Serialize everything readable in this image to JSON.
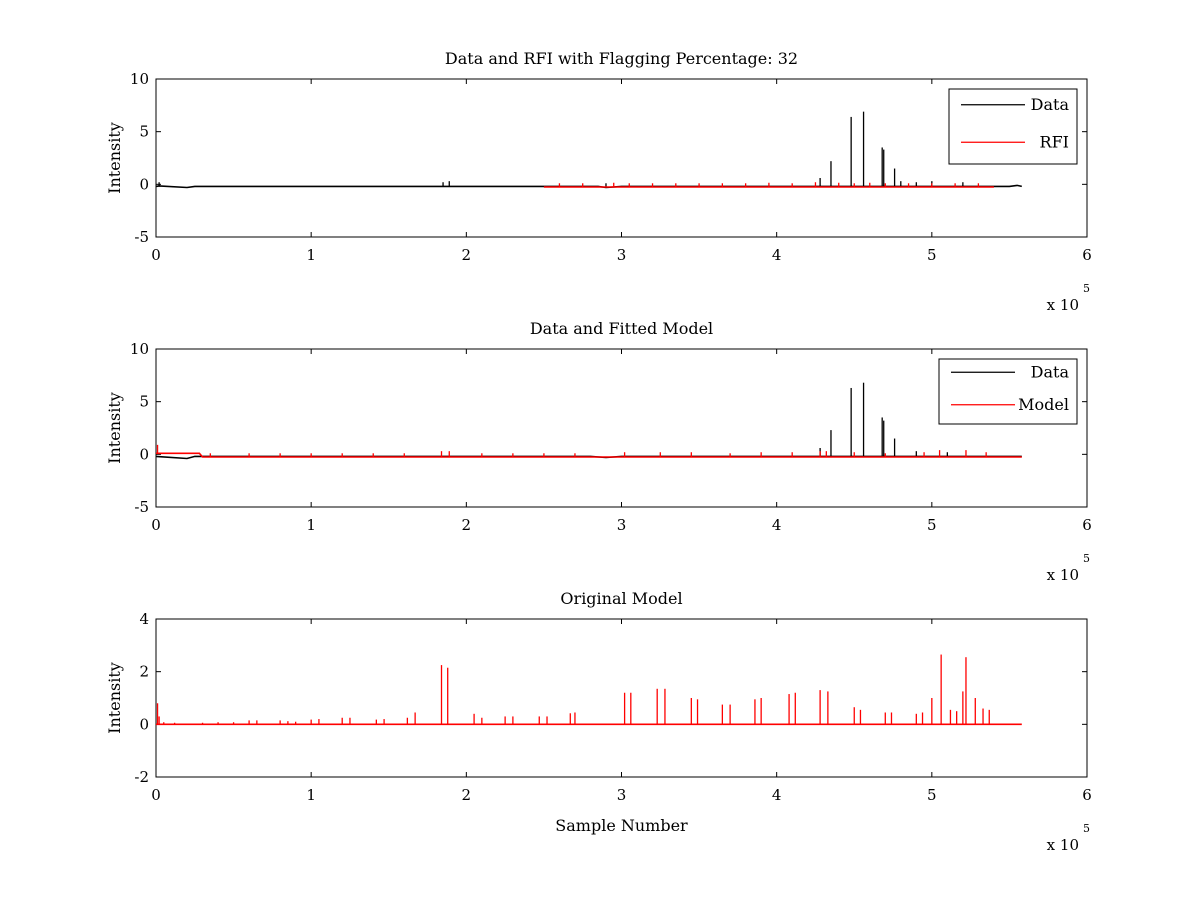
{
  "figure": {
    "background": "#ffffff",
    "colors": {
      "data": "#000000",
      "rfi": "#ff0000",
      "model": "#ff0000"
    }
  },
  "chart_data": [
    {
      "type": "line",
      "title": "Data and RFI with Flagging Percentage: 32",
      "xlabel": "",
      "ylabel": "Intensity",
      "xlim": [
        0,
        6
      ],
      "ylim": [
        -5,
        10
      ],
      "xticks": [
        "0",
        "1",
        "2",
        "3",
        "4",
        "5",
        "6"
      ],
      "yticks": [
        "-5",
        "0",
        "5",
        "10"
      ],
      "x_multiplier": {
        "base": "x 10",
        "exponent": "5"
      },
      "grid": false,
      "legend": {
        "position": "top-right",
        "entries": [
          "Data",
          "RFI"
        ]
      },
      "series": [
        {
          "name": "Data",
          "color": "#000000",
          "baseline": [
            [
              0,
              -0.2
            ],
            [
              0.02,
              -0.15
            ],
            [
              0.2,
              -0.3
            ],
            [
              0.25,
              -0.2
            ],
            [
              2.5,
              -0.2
            ],
            [
              2.85,
              -0.2
            ],
            [
              2.9,
              -0.3
            ],
            [
              3.0,
              -0.2
            ],
            [
              5.5,
              -0.2
            ],
            [
              5.55,
              -0.1
            ],
            [
              5.58,
              -0.2
            ]
          ],
          "spikes": [
            [
              0.02,
              0.2
            ],
            [
              1.85,
              0.2
            ],
            [
              1.89,
              0.3
            ],
            [
              2.9,
              0.1
            ],
            [
              4.28,
              0.6
            ],
            [
              4.35,
              2.2
            ],
            [
              4.48,
              6.4
            ],
            [
              4.56,
              6.9
            ],
            [
              4.68,
              3.5
            ],
            [
              4.69,
              3.3
            ],
            [
              4.76,
              1.5
            ],
            [
              4.8,
              0.3
            ],
            [
              4.9,
              0.2
            ],
            [
              5.0,
              0.3
            ],
            [
              5.2,
              0.2
            ]
          ]
        },
        {
          "name": "RFI",
          "color": "#ff0000",
          "baseline": [
            [
              2.5,
              -0.25
            ],
            [
              5.4,
              -0.25
            ]
          ],
          "spikes": [
            [
              2.6,
              0.1
            ],
            [
              2.75,
              0.1
            ],
            [
              2.95,
              0.15
            ],
            [
              3.05,
              0.1
            ],
            [
              3.2,
              0.1
            ],
            [
              3.35,
              0.1
            ],
            [
              3.5,
              0.1
            ],
            [
              3.65,
              0.1
            ],
            [
              3.8,
              0.1
            ],
            [
              3.95,
              0.15
            ],
            [
              4.1,
              0.1
            ],
            [
              4.25,
              0.2
            ],
            [
              4.4,
              0.15
            ],
            [
              4.5,
              0.1
            ],
            [
              4.6,
              0.15
            ],
            [
              4.7,
              0.1
            ],
            [
              4.85,
              0.1
            ],
            [
              5.0,
              0.1
            ],
            [
              5.15,
              0.1
            ],
            [
              5.3,
              0.1
            ]
          ]
        }
      ]
    },
    {
      "type": "line",
      "title": "Data and Fitted Model",
      "xlabel": "",
      "ylabel": "Intensity",
      "xlim": [
        0,
        6
      ],
      "ylim": [
        -5,
        10
      ],
      "xticks": [
        "0",
        "1",
        "2",
        "3",
        "4",
        "5",
        "6"
      ],
      "yticks": [
        "-5",
        "0",
        "5",
        "10"
      ],
      "x_multiplier": {
        "base": "x 10",
        "exponent": "5"
      },
      "grid": false,
      "legend": {
        "position": "top-right",
        "entries": [
          "Data",
          "Model"
        ]
      },
      "series": [
        {
          "name": "Data",
          "color": "#000000",
          "baseline": [
            [
              0,
              -0.2
            ],
            [
              0.2,
              -0.4
            ],
            [
              0.25,
              -0.2
            ],
            [
              2.8,
              -0.2
            ],
            [
              2.9,
              -0.3
            ],
            [
              3.0,
              -0.2
            ],
            [
              5.58,
              -0.2
            ]
          ],
          "spikes": [
            [
              4.28,
              0.6
            ],
            [
              4.35,
              2.3
            ],
            [
              4.48,
              6.3
            ],
            [
              4.56,
              6.8
            ],
            [
              4.68,
              3.5
            ],
            [
              4.69,
              3.2
            ],
            [
              4.76,
              1.5
            ],
            [
              4.9,
              0.3
            ],
            [
              5.1,
              0.2
            ]
          ]
        },
        {
          "name": "Model",
          "color": "#ff0000",
          "baseline": [
            [
              0,
              0.1
            ],
            [
              0.005,
              0.1
            ],
            [
              0.02,
              0.1
            ],
            [
              0.28,
              0.1
            ],
            [
              0.3,
              -0.25
            ],
            [
              5.58,
              -0.25
            ]
          ],
          "spikes": [
            [
              0.01,
              0.9
            ],
            [
              0.35,
              0.1
            ],
            [
              0.6,
              0.1
            ],
            [
              0.8,
              0.1
            ],
            [
              1.0,
              0.1
            ],
            [
              1.2,
              0.1
            ],
            [
              1.4,
              0.1
            ],
            [
              1.6,
              0.1
            ],
            [
              1.84,
              0.3
            ],
            [
              1.89,
              0.3
            ],
            [
              2.1,
              0.1
            ],
            [
              2.3,
              0.1
            ],
            [
              2.5,
              0.1
            ],
            [
              2.7,
              0.1
            ],
            [
              3.02,
              0.2
            ],
            [
              3.25,
              0.2
            ],
            [
              3.45,
              0.2
            ],
            [
              3.7,
              0.1
            ],
            [
              3.9,
              0.2
            ],
            [
              4.1,
              0.2
            ],
            [
              4.28,
              0.3
            ],
            [
              4.32,
              0.3
            ],
            [
              4.5,
              0.2
            ],
            [
              4.7,
              0.1
            ],
            [
              4.95,
              0.2
            ],
            [
              5.05,
              0.4
            ],
            [
              5.22,
              0.4
            ],
            [
              5.35,
              0.2
            ]
          ]
        }
      ]
    },
    {
      "type": "line",
      "title": "Original Model",
      "xlabel": "Sample Number",
      "ylabel": "Intensity",
      "xlim": [
        0,
        6
      ],
      "ylim": [
        -2,
        4
      ],
      "xticks": [
        "0",
        "1",
        "2",
        "3",
        "4",
        "5",
        "6"
      ],
      "yticks": [
        "-2",
        "0",
        "2",
        "4"
      ],
      "x_multiplier": {
        "base": "x 10",
        "exponent": "5"
      },
      "grid": false,
      "legend": null,
      "series": [
        {
          "color": "#ff0000",
          "baseline": [
            [
              0,
              0.0
            ],
            [
              5.58,
              0.0
            ]
          ],
          "spikes": [
            [
              0.01,
              0.8
            ],
            [
              0.02,
              0.3
            ],
            [
              0.05,
              0.08
            ],
            [
              0.12,
              0.06
            ],
            [
              0.3,
              0.06
            ],
            [
              0.4,
              0.08
            ],
            [
              0.5,
              0.08
            ],
            [
              0.6,
              0.15
            ],
            [
              0.65,
              0.15
            ],
            [
              0.8,
              0.15
            ],
            [
              0.85,
              0.12
            ],
            [
              0.9,
              0.1
            ],
            [
              1.0,
              0.18
            ],
            [
              1.05,
              0.2
            ],
            [
              1.2,
              0.25
            ],
            [
              1.25,
              0.25
            ],
            [
              1.42,
              0.18
            ],
            [
              1.47,
              0.2
            ],
            [
              1.62,
              0.25
            ],
            [
              1.67,
              0.45
            ],
            [
              1.84,
              2.25
            ],
            [
              1.88,
              2.15
            ],
            [
              2.05,
              0.4
            ],
            [
              2.1,
              0.25
            ],
            [
              2.25,
              0.3
            ],
            [
              2.3,
              0.3
            ],
            [
              2.47,
              0.3
            ],
            [
              2.52,
              0.3
            ],
            [
              2.67,
              0.42
            ],
            [
              2.7,
              0.45
            ],
            [
              3.02,
              1.2
            ],
            [
              3.06,
              1.2
            ],
            [
              3.23,
              1.35
            ],
            [
              3.28,
              1.35
            ],
            [
              3.45,
              1.0
            ],
            [
              3.49,
              0.95
            ],
            [
              3.65,
              0.75
            ],
            [
              3.7,
              0.75
            ],
            [
              3.86,
              0.95
            ],
            [
              3.9,
              1.0
            ],
            [
              4.08,
              1.15
            ],
            [
              4.12,
              1.2
            ],
            [
              4.28,
              1.3
            ],
            [
              4.33,
              1.25
            ],
            [
              4.5,
              0.65
            ],
            [
              4.54,
              0.55
            ],
            [
              4.7,
              0.45
            ],
            [
              4.74,
              0.45
            ],
            [
              4.9,
              0.4
            ],
            [
              4.94,
              0.45
            ],
            [
              5.0,
              1.0
            ],
            [
              5.06,
              2.65
            ],
            [
              5.12,
              0.55
            ],
            [
              5.16,
              0.5
            ],
            [
              5.2,
              1.25
            ],
            [
              5.22,
              2.55
            ],
            [
              5.28,
              1.0
            ],
            [
              5.33,
              0.6
            ],
            [
              5.37,
              0.55
            ]
          ]
        }
      ]
    }
  ]
}
